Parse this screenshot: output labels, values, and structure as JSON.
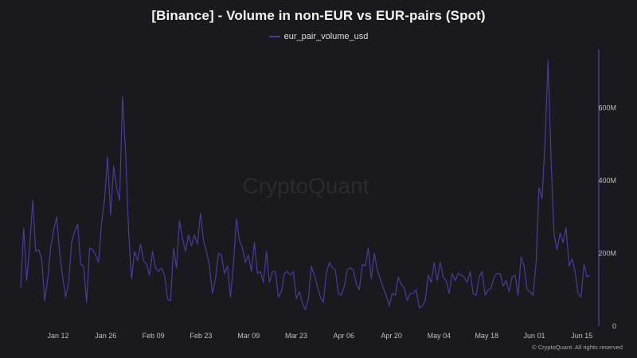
{
  "page": {
    "title": "[Binance] - Volume in non-EUR vs EUR-pairs (Spot)",
    "watermark": "CryptoQuant",
    "footer": "© CryptoQuant. All rights reserved"
  },
  "chart_data": {
    "type": "line",
    "title": "[Binance] - Volume in non-EUR vs EUR-pairs (Spot)",
    "xlabel": "",
    "ylabel": "",
    "x_ticks": [
      "Jan 12",
      "Jan 26",
      "Feb 09",
      "Feb 23",
      "Mar 09",
      "Mar 23",
      "Apr 06",
      "Apr 20",
      "May 04",
      "May 18",
      "Jun 01",
      "Jun 15"
    ],
    "y_ticks": [
      {
        "value": 0,
        "label": "0"
      },
      {
        "value": 200000000,
        "label": "200M"
      },
      {
        "value": 400000000,
        "label": "400M"
      },
      {
        "value": 600000000,
        "label": "600M"
      }
    ],
    "ylim": [
      0,
      760000000
    ],
    "grid": false,
    "legend": "top-center",
    "y_axis_side": "right",
    "colors": {
      "series": "#4c3a99",
      "axis": "#4c3a99",
      "background": "#1a191e"
    },
    "series": [
      {
        "name": "eur_pair_volume_usd",
        "values": [
          105,
          270,
          125,
          220,
          345,
          205,
          210,
          185,
          70,
          130,
          215,
          265,
          300,
          200,
          135,
          80,
          120,
          230,
          260,
          280,
          170,
          165,
          65,
          215,
          210,
          195,
          175,
          285,
          350,
          465,
          305,
          440,
          380,
          345,
          630,
          480,
          260,
          130,
          205,
          180,
          225,
          180,
          170,
          140,
          205,
          160,
          150,
          160,
          140,
          75,
          70,
          215,
          160,
          290,
          240,
          205,
          250,
          220,
          250,
          225,
          310,
          235,
          205,
          165,
          90,
          130,
          200,
          195,
          145,
          165,
          80,
          170,
          295,
          235,
          215,
          175,
          195,
          150,
          230,
          145,
          150,
          120,
          205,
          120,
          150,
          150,
          80,
          95,
          145,
          150,
          140,
          150,
          75,
          95,
          65,
          45,
          75,
          165,
          140,
          110,
          80,
          65,
          145,
          175,
          160,
          155,
          90,
          85,
          110,
          155,
          160,
          155,
          115,
          100,
          170,
          165,
          215,
          130,
          200,
          155,
          130,
          105,
          85,
          55,
          90,
          85,
          135,
          115,
          105,
          70,
          90,
          90,
          100,
          50,
          55,
          70,
          140,
          120,
          175,
          125,
          175,
          135,
          125,
          90,
          145,
          125,
          145,
          140,
          135,
          120,
          150,
          90,
          85,
          135,
          150,
          85,
          100,
          105,
          135,
          145,
          145,
          110,
          125,
          95,
          135,
          140,
          85,
          190,
          165,
          100,
          95,
          85,
          175,
          380,
          350,
          510,
          730,
          460,
          250,
          210,
          255,
          230,
          270,
          165,
          185,
          150,
          90,
          80,
          170,
          135,
          140
        ]
      }
    ]
  }
}
